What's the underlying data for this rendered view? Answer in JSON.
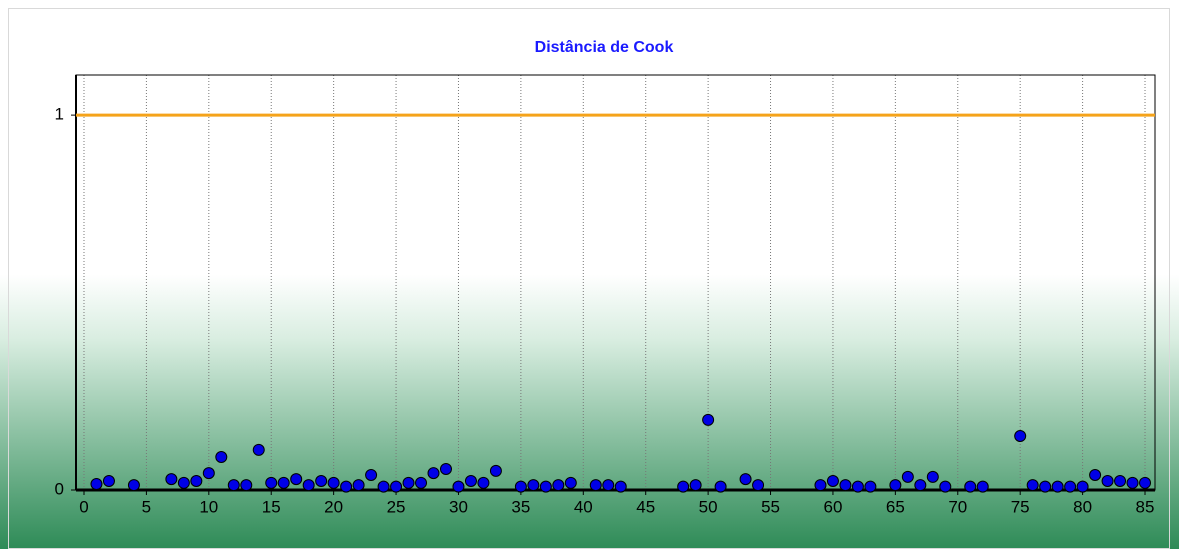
{
  "chart_data": {
    "type": "scatter",
    "title": "Distância de Cook",
    "x": [
      1,
      2,
      4,
      7,
      8,
      9,
      10,
      11,
      12,
      13,
      14,
      15,
      16,
      17,
      18,
      19,
      20,
      21,
      22,
      23,
      24,
      25,
      26,
      27,
      28,
      29,
      30,
      31,
      32,
      33,
      35,
      36,
      37,
      38,
      39,
      41,
      42,
      43,
      48,
      49,
      50,
      51,
      53,
      54,
      59,
      60,
      61,
      62,
      63,
      65,
      66,
      67,
      68,
      69,
      71,
      72,
      75,
      76,
      77,
      78,
      79,
      80,
      81,
      82,
      83,
      84,
      85
    ],
    "values": [
      0.008,
      0.016,
      0.005,
      0.021,
      0.011,
      0.016,
      0.037,
      0.08,
      0.005,
      0.005,
      0.099,
      0.011,
      0.011,
      0.021,
      0.005,
      0.016,
      0.011,
      0.001,
      0.005,
      0.032,
      0.001,
      0.001,
      0.011,
      0.011,
      0.037,
      0.048,
      0.001,
      0.016,
      0.011,
      0.043,
      0.001,
      0.005,
      0.001,
      0.005,
      0.011,
      0.005,
      0.005,
      0.001,
      0.001,
      0.005,
      0.179,
      0.001,
      0.021,
      0.005,
      0.005,
      0.016,
      0.005,
      0.001,
      0.001,
      0.005,
      0.027,
      0.005,
      0.027,
      0.001,
      0.001,
      0.001,
      0.136,
      0.005,
      0.001,
      0.001,
      0.001,
      0.001,
      0.032,
      0.016,
      0.016,
      0.011,
      0.011
    ],
    "color": "#0000e6",
    "reference_line": {
      "value": 1,
      "color": "#f5a31a"
    },
    "xlim": [
      -0.64,
      85.8
    ],
    "xticks": [
      0,
      5,
      10,
      15,
      20,
      25,
      30,
      35,
      40,
      45,
      50,
      55,
      60,
      65,
      70,
      75,
      80,
      85
    ],
    "ylim": [
      0,
      1.107
    ],
    "yticks": [
      0,
      1
    ],
    "grid": true
  }
}
